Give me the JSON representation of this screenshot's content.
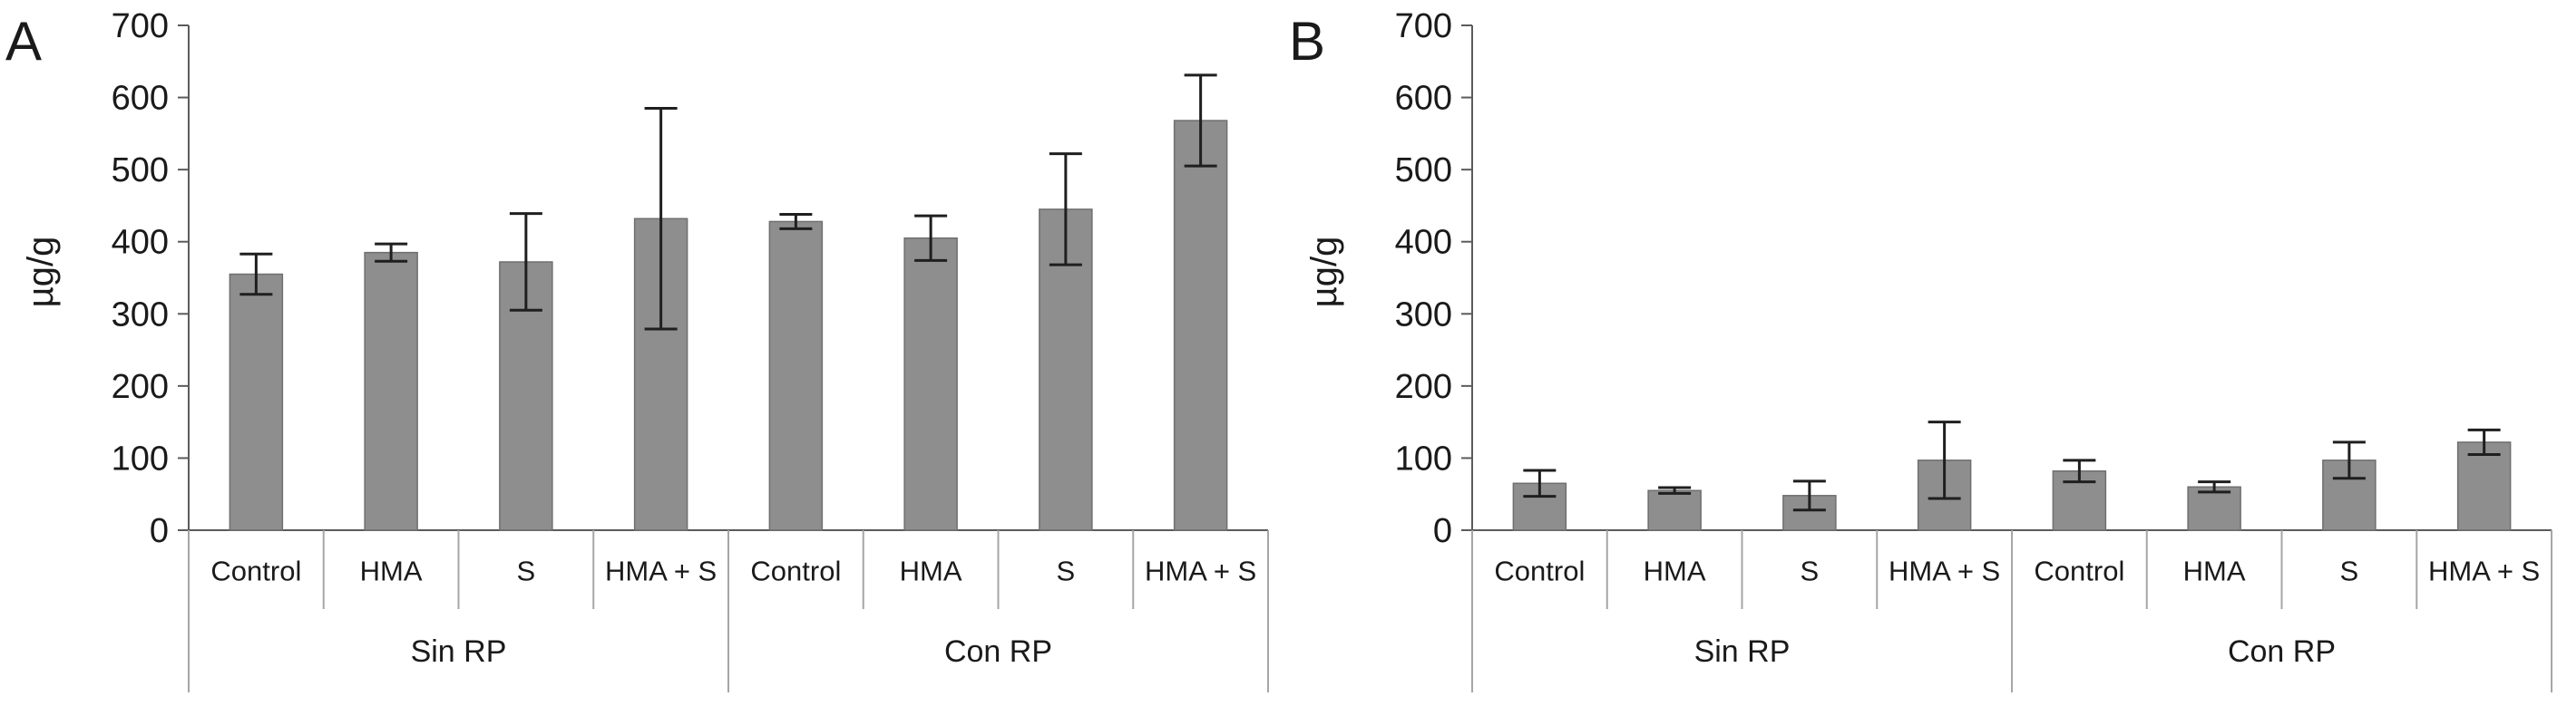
{
  "figure": {
    "background": "#ffffff",
    "panels": [
      "A",
      "B"
    ]
  },
  "chart_data": [
    {
      "type": "bar",
      "panel_label": "A",
      "title": "",
      "xlabel": "",
      "ylabel": "µg/g",
      "ylim": [
        0,
        700
      ],
      "ytick_step": 100,
      "ytick_labels": [
        "0",
        "100",
        "200",
        "300",
        "400",
        "500",
        "600",
        "700"
      ],
      "grid": false,
      "legend": false,
      "groups": [
        "Sin RP",
        "Con RP"
      ],
      "categories": [
        "Control",
        "HMA",
        "S",
        "HMA + S",
        "Control",
        "HMA",
        "S",
        "HMA + S"
      ],
      "values": [
        355,
        385,
        372,
        432,
        428,
        405,
        445,
        568
      ],
      "errors": [
        28,
        12,
        67,
        153,
        10,
        31,
        77,
        63
      ],
      "bar_color": "#8e8e8e",
      "bar_edge_color": "#6f6f6f",
      "error_color": "#1f1f1f"
    },
    {
      "type": "bar",
      "panel_label": "B",
      "title": "",
      "xlabel": "",
      "ylabel": "µg/g",
      "ylim": [
        0,
        700
      ],
      "ytick_step": 100,
      "ytick_labels": [
        "0",
        "100",
        "200",
        "300",
        "400",
        "500",
        "600",
        "700"
      ],
      "grid": false,
      "legend": false,
      "groups": [
        "Sin RP",
        "Con RP"
      ],
      "categories": [
        "Control",
        "HMA",
        "S",
        "HMA + S",
        "Control",
        "HMA",
        "S",
        "HMA + S"
      ],
      "values": [
        65,
        55,
        48,
        97,
        82,
        60,
        97,
        122
      ],
      "errors": [
        18,
        4,
        20,
        53,
        15,
        7,
        25,
        17
      ],
      "bar_color": "#8e8e8e",
      "bar_edge_color": "#6f6f6f",
      "error_color": "#1f1f1f"
    }
  ]
}
